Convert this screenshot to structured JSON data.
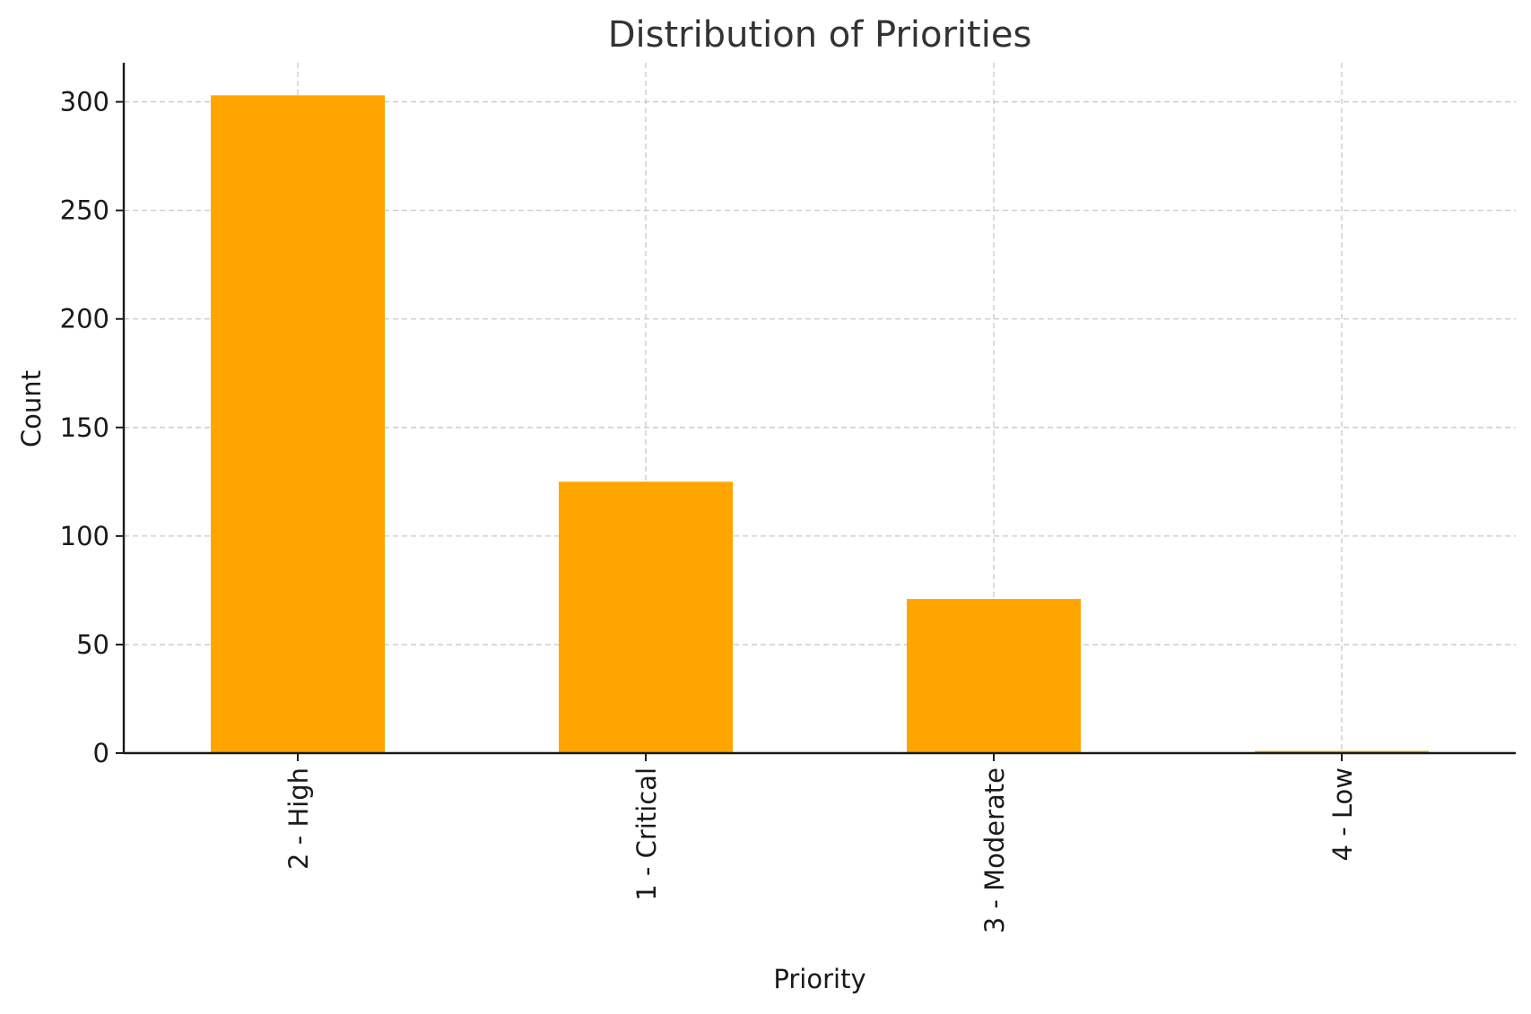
{
  "chart_data": {
    "type": "bar",
    "title": "Distribution of Priorities",
    "xlabel": "Priority",
    "ylabel": "Count",
    "categories": [
      "2 - High",
      "1 - Critical",
      "3 - Moderate",
      "4 - Low"
    ],
    "values": [
      303,
      125,
      71,
      1
    ],
    "ylim": [
      0,
      318
    ],
    "yticks": [
      0,
      50,
      100,
      150,
      200,
      250,
      300
    ],
    "grid": true,
    "bar_color": "#ffa500",
    "legend": "none"
  }
}
